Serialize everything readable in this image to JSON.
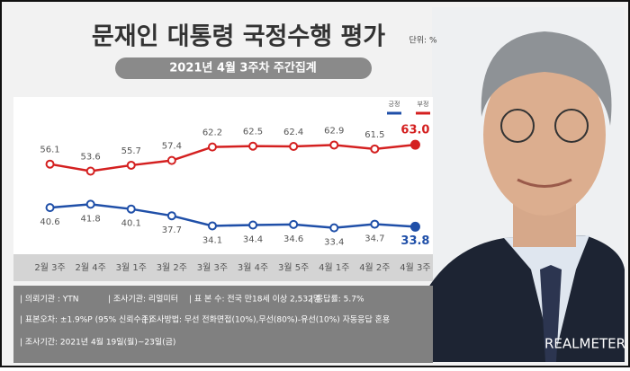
{
  "chart_data": {
    "type": "line",
    "title": "문재인 대통령 국정수행 평가",
    "unit_note": "단위: %",
    "subtitle": "2021년 4월 3주차 주간집계",
    "categories": [
      "2월 3주",
      "2월 4주",
      "3월 1주",
      "3월 2주",
      "3월 3주",
      "3월 4주",
      "3월 5주",
      "4월 1주",
      "4월 2주",
      "4월 3주"
    ],
    "series": [
      {
        "name": "긍정",
        "color": "#1f4fa8",
        "values": [
          40.6,
          41.8,
          40.1,
          37.7,
          34.1,
          34.4,
          34.6,
          33.4,
          34.7,
          33.8
        ]
      },
      {
        "name": "부정",
        "color": "#d42020",
        "values": [
          56.1,
          53.6,
          55.7,
          57.4,
          62.2,
          62.5,
          62.4,
          62.9,
          61.5,
          63.0
        ],
        "value_labels": [
          "56.1",
          "53.6",
          "55.7",
          "57.4",
          "62.2",
          "62.5",
          "62.4",
          "62.9",
          "61.5",
          "63.0"
        ]
      }
    ],
    "ylim": [
      24,
      80
    ],
    "legend": "top-right",
    "notes": [
      "| 의뢰기관 : YTN",
      "| 조사기관: 리얼미터",
      "| 표 본 수: 전국 만18세 이상 2,532명",
      "| 응답률: 5.7%",
      "| 표본오차: ±1.9%P (95% 신뢰수준)",
      "| 조사방법: 무선 전화면접(10%),무선(80%)-유선(10%) 자동응답 혼용",
      "| 조사기간: 2021년 4월 19일(월)~23일(금)"
    ],
    "brand": "REALMETER"
  }
}
